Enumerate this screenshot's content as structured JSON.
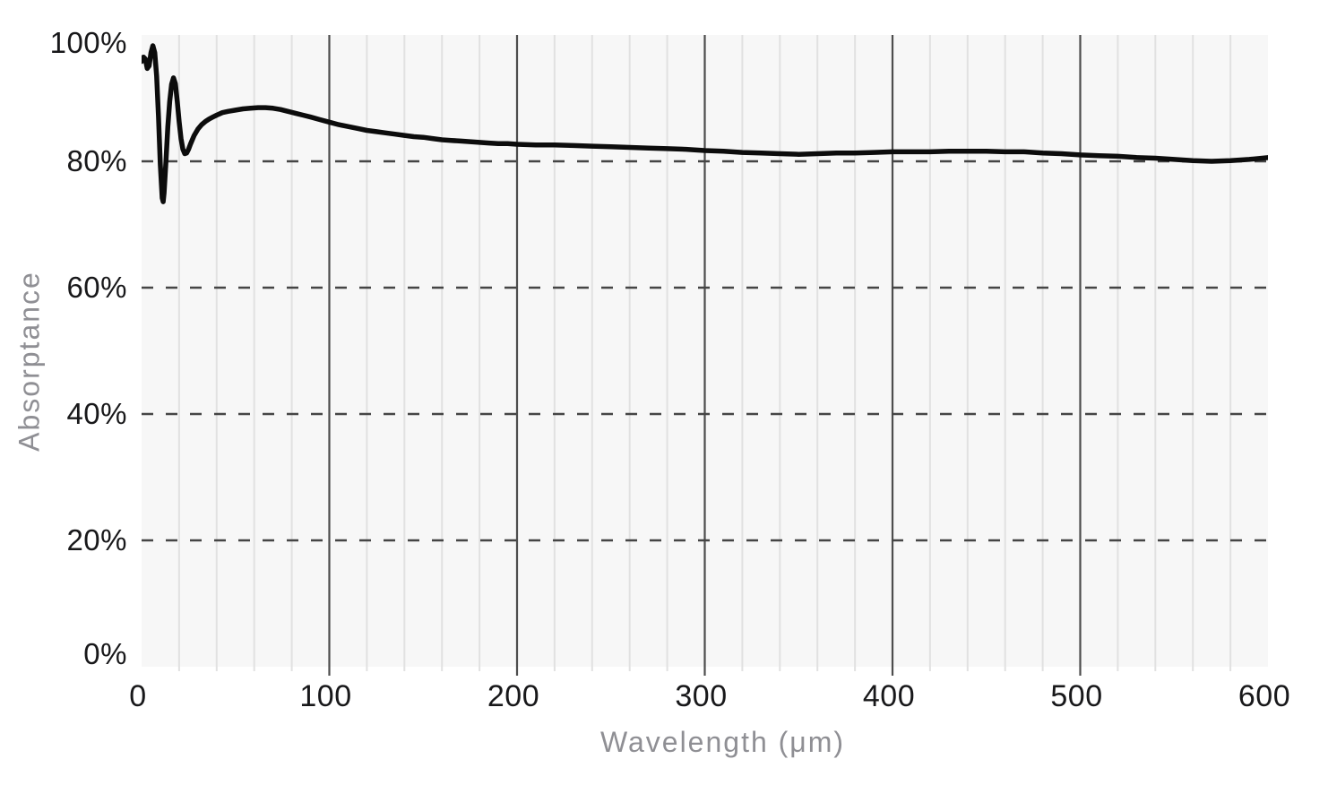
{
  "chart_data": {
    "type": "line",
    "title": "",
    "xlabel": "Wavelength (μm)",
    "ylabel": "Absorptance",
    "legend_position": "none",
    "x_axis": {
      "min": 0,
      "max": 600,
      "major_tick_step": 100,
      "minor_grid_step": 20,
      "ticks": [
        0,
        100,
        200,
        300,
        400,
        500,
        600
      ],
      "tick_labels": [
        "0",
        "100",
        "200",
        "300",
        "400",
        "500",
        "600"
      ]
    },
    "y_axis": {
      "min": 0,
      "max": 100,
      "tick_step": 20,
      "ticks": [
        0,
        20,
        40,
        60,
        80,
        100
      ],
      "tick_labels": [
        "0%",
        "20%",
        "40%",
        "60%",
        "80%",
        "100%"
      ],
      "dashed_gridline_values": [
        20,
        40,
        60,
        80
      ]
    },
    "grid": {
      "vertical_minor_solid": true,
      "vertical_major_solid": true,
      "horizontal_dashed": true
    },
    "series": [
      {
        "name": "absorptance",
        "points": [
          [
            0,
            95.8
          ],
          [
            1,
            96.5
          ],
          [
            2,
            96.2
          ],
          [
            3,
            94.7
          ],
          [
            4,
            95.1
          ],
          [
            5,
            97.2
          ],
          [
            6,
            98.3
          ],
          [
            7,
            97.2
          ],
          [
            8,
            93.5
          ],
          [
            9,
            87.0
          ],
          [
            10,
            79.5
          ],
          [
            11,
            74.2
          ],
          [
            11.5,
            73.6
          ],
          [
            12,
            75.0
          ],
          [
            13,
            80.0
          ],
          [
            14,
            85.5
          ],
          [
            15,
            89.5
          ],
          [
            16,
            92.2
          ],
          [
            17,
            93.2
          ],
          [
            18,
            92.3
          ],
          [
            19,
            89.5
          ],
          [
            20,
            86.3
          ],
          [
            21,
            83.6
          ],
          [
            22,
            81.9
          ],
          [
            23,
            81.2
          ],
          [
            24,
            81.3
          ],
          [
            25,
            81.9
          ],
          [
            26,
            82.7
          ],
          [
            27,
            83.4
          ],
          [
            28,
            84.1
          ],
          [
            30,
            85.1
          ],
          [
            32,
            85.8
          ],
          [
            34,
            86.3
          ],
          [
            36,
            86.7
          ],
          [
            38,
            87.0
          ],
          [
            40,
            87.3
          ],
          [
            43,
            87.7
          ],
          [
            46,
            87.9
          ],
          [
            50,
            88.1
          ],
          [
            54,
            88.3
          ],
          [
            58,
            88.4
          ],
          [
            62,
            88.5
          ],
          [
            66,
            88.5
          ],
          [
            70,
            88.4
          ],
          [
            74,
            88.2
          ],
          [
            78,
            87.9
          ],
          [
            82,
            87.6
          ],
          [
            86,
            87.3
          ],
          [
            90,
            87.0
          ],
          [
            95,
            86.6
          ],
          [
            100,
            86.2
          ],
          [
            105,
            85.8
          ],
          [
            110,
            85.5
          ],
          [
            115,
            85.2
          ],
          [
            120,
            84.9
          ],
          [
            125,
            84.7
          ],
          [
            130,
            84.5
          ],
          [
            135,
            84.3
          ],
          [
            140,
            84.1
          ],
          [
            145,
            83.9
          ],
          [
            150,
            83.8
          ],
          [
            155,
            83.6
          ],
          [
            160,
            83.4
          ],
          [
            165,
            83.3
          ],
          [
            170,
            83.2
          ],
          [
            175,
            83.1
          ],
          [
            180,
            83.0
          ],
          [
            185,
            82.9
          ],
          [
            190,
            82.8
          ],
          [
            195,
            82.8
          ],
          [
            200,
            82.7
          ],
          [
            210,
            82.6
          ],
          [
            220,
            82.6
          ],
          [
            230,
            82.5
          ],
          [
            240,
            82.4
          ],
          [
            250,
            82.3
          ],
          [
            260,
            82.2
          ],
          [
            270,
            82.1
          ],
          [
            280,
            82.0
          ],
          [
            290,
            81.9
          ],
          [
            300,
            81.7
          ],
          [
            310,
            81.6
          ],
          [
            320,
            81.4
          ],
          [
            330,
            81.3
          ],
          [
            340,
            81.2
          ],
          [
            350,
            81.1
          ],
          [
            360,
            81.2
          ],
          [
            370,
            81.3
          ],
          [
            380,
            81.3
          ],
          [
            390,
            81.4
          ],
          [
            400,
            81.5
          ],
          [
            410,
            81.5
          ],
          [
            420,
            81.5
          ],
          [
            430,
            81.6
          ],
          [
            440,
            81.6
          ],
          [
            450,
            81.6
          ],
          [
            460,
            81.5
          ],
          [
            470,
            81.5
          ],
          [
            480,
            81.3
          ],
          [
            490,
            81.2
          ],
          [
            500,
            81.0
          ],
          [
            510,
            80.9
          ],
          [
            520,
            80.8
          ],
          [
            530,
            80.6
          ],
          [
            540,
            80.5
          ],
          [
            550,
            80.3
          ],
          [
            560,
            80.1
          ],
          [
            570,
            80.0
          ],
          [
            580,
            80.1
          ],
          [
            590,
            80.3
          ],
          [
            600,
            80.6
          ]
        ]
      }
    ]
  },
  "colors": {
    "page_background": "#ffffff",
    "plot_background": "#f7f7f7",
    "minor_gridline": "#e1e1e1",
    "major_gridline": "#4d4d4d",
    "dashed_gridline": "#454545",
    "line": "#0c0c0c",
    "tick_label": "#18181a",
    "axis_title": "#8f8f94"
  }
}
